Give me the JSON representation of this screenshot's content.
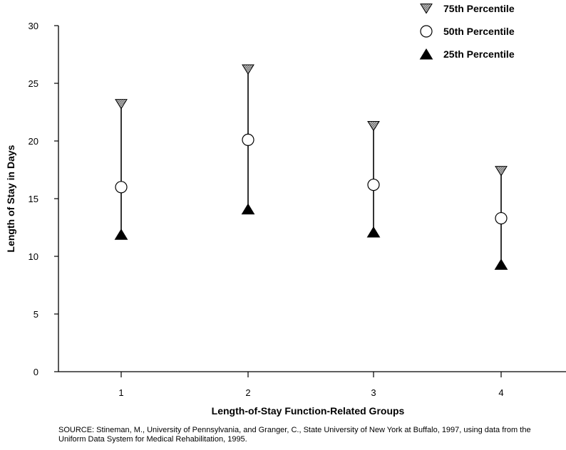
{
  "chart_data": {
    "type": "scatter",
    "title": "",
    "xlabel": "Length-of-Stay Function-Related Groups",
    "ylabel": "Length of Stay in Days",
    "categories": [
      "1",
      "2",
      "3",
      "4"
    ],
    "ylim": [
      0,
      30
    ],
    "yticks": [
      0,
      5,
      10,
      15,
      20,
      25,
      30
    ],
    "grid": false,
    "legend_position": "top-right",
    "series": [
      {
        "name": "75th Percentile",
        "marker": "inverted-triangle-hatched",
        "color": "#9a9a9a",
        "values": [
          23.2,
          26.2,
          21.3,
          17.4
        ]
      },
      {
        "name": "50th Percentile",
        "marker": "open-circle",
        "color": "#ffffff",
        "values": [
          16.0,
          20.1,
          16.2,
          13.3
        ]
      },
      {
        "name": "25th Percentile",
        "marker": "filled-triangle",
        "color": "#000000",
        "values": [
          11.9,
          14.1,
          12.1,
          9.3
        ]
      }
    ]
  },
  "source_note": "SOURCE: Stineman, M., University of Pennsylvania, and Granger, C., State University of New York at Buffalo, 1997, using data from the Uniform Data System for Medical Rehabilitation, 1995."
}
